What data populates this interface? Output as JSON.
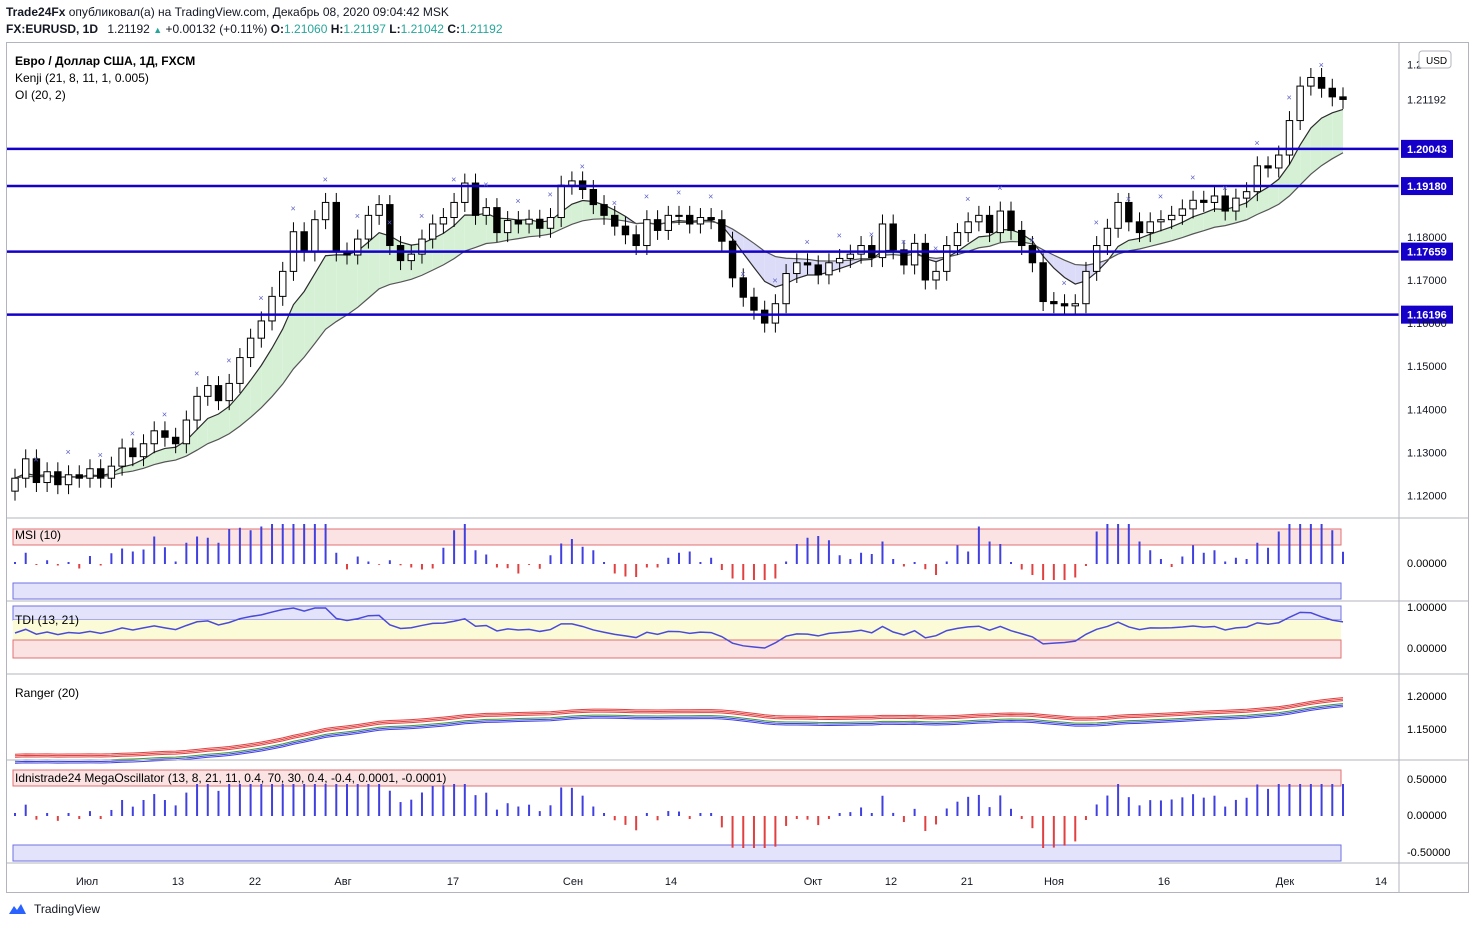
{
  "header": {
    "author": "Trade24Fx",
    "published": "опубликовал(а) на TradingView.com, Декабрь 08, 2020 09:04:42 MSK",
    "symbol": "FX:EURUSD, 1D",
    "last": "1.21192",
    "change": "+0.00132 (+0.11%)",
    "o_label": "O:",
    "o": "1.21060",
    "h_label": "H:",
    "h": "1.21197",
    "l_label": "L:",
    "l": "1.21042",
    "c_label": "C:",
    "c": "1.21192"
  },
  "main_pane": {
    "title": "Евро / Доллар США, 1Д, FXCM",
    "indicator1": "Kenji (21, 8, 11, 1, 0.005)",
    "indicator2": "OI (20, 2)",
    "currency_button": "USD"
  },
  "panes": {
    "msi": "MSI (10)",
    "tdi": "TDI (13, 21)",
    "ranger": "Ranger (20)",
    "mega": "Idnistrade24 MegaOscillator (13, 8, 21, 11, 0.4, 70, 30, 0.4, -0.4, 0.0001, -0.0001)"
  },
  "x_axis_labels": [
    "Июл",
    "13",
    "22",
    "Авг",
    "17",
    "Сен",
    "14",
    "Окт",
    "12",
    "21",
    "Ноя",
    "16",
    "Дек",
    "14"
  ],
  "footer": {
    "brand": "TradingView"
  },
  "colors": {
    "up": "#ffffff",
    "down": "#000000",
    "level": "#1400c8",
    "buy": "#5b5fc7",
    "sell": "#e04040",
    "bull_cloud": "#d6f0d6",
    "bear_cloud": "#dcdcf8"
  },
  "chart_data": {
    "type": "candlestick",
    "title": "Евро / Доллар США, 1Д, FXCM",
    "y_axis_ticks": [
      "1.22000",
      "1.21192",
      "1.20043",
      "1.19180",
      "1.18000",
      "1.17659",
      "1.17000",
      "1.16196",
      "1.16000",
      "1.15000",
      "1.14000",
      "1.13000",
      "1.12000"
    ],
    "ylim": [
      1.115,
      1.225
    ],
    "levels": [
      1.20043,
      1.1918,
      1.17659,
      1.16196
    ],
    "close_series": [
      1.124,
      1.1285,
      1.123,
      1.1255,
      1.1225,
      1.1248,
      1.124,
      1.1262,
      1.124,
      1.1268,
      1.131,
      1.129,
      1.132,
      1.135,
      1.1335,
      1.132,
      1.1375,
      1.143,
      1.1455,
      1.142,
      1.146,
      1.152,
      1.1565,
      1.1605,
      1.1662,
      1.172,
      1.1812,
      1.1765,
      1.184,
      1.188,
      1.1765,
      1.1758,
      1.1795,
      1.185,
      1.1875,
      1.178,
      1.1745,
      1.176,
      1.1795,
      1.183,
      1.1845,
      1.188,
      1.1925,
      1.185,
      1.1868,
      1.181,
      1.1838,
      1.183,
      1.1841,
      1.182,
      1.1845,
      1.192,
      1.193,
      1.191,
      1.1875,
      1.185,
      1.1825,
      1.1805,
      1.178,
      1.184,
      1.1815,
      1.185,
      1.185,
      1.183,
      1.1845,
      1.184,
      1.179,
      1.1705,
      1.166,
      1.163,
      1.16,
      1.1645,
      1.1715,
      1.174,
      1.1735,
      1.1712,
      1.174,
      1.175,
      1.176,
      1.178,
      1.1752,
      1.183,
      1.177,
      1.1735,
      1.1785,
      1.17,
      1.172,
      1.178,
      1.181,
      1.1835,
      1.185,
      1.181,
      1.186,
      1.1815,
      1.178,
      1.174,
      1.165,
      1.1645,
      1.164,
      1.1645,
      1.172,
      1.178,
      1.182,
      1.188,
      1.1835,
      1.181,
      1.1835,
      1.184,
      1.185,
      1.1865,
      1.1885,
      1.188,
      1.1895,
      1.186,
      1.189,
      1.1905,
      1.1965,
      1.196,
      1.199,
      1.207,
      1.215,
      1.217,
      1.2145,
      1.2125,
      1.2119
    ]
  }
}
